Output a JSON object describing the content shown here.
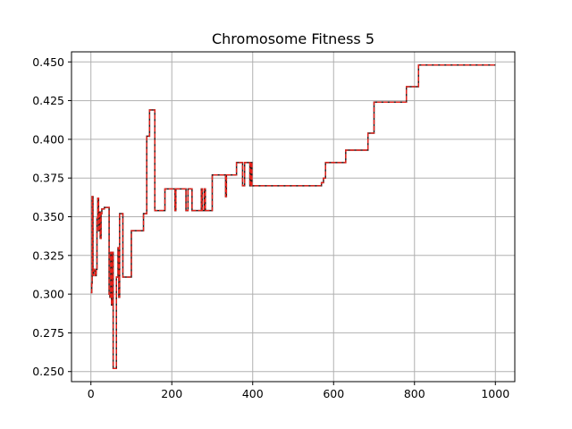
{
  "chart_data": {
    "type": "line",
    "title": "Chromosome Fitness 5",
    "xlabel": "",
    "ylabel": "",
    "xlim": [
      -48,
      1048
    ],
    "ylim": [
      0.2435,
      0.4565
    ],
    "grid": true,
    "x_ticks": [
      0,
      200,
      400,
      600,
      800,
      1000
    ],
    "y_ticks": [
      0.25,
      0.275,
      0.3,
      0.325,
      0.35,
      0.375,
      0.4,
      0.425,
      0.45
    ],
    "x_tick_labels": [
      "0",
      "200",
      "400",
      "600",
      "800",
      "1000"
    ],
    "y_tick_labels": [
      "0.250",
      "0.275",
      "0.300",
      "0.325",
      "0.350",
      "0.375",
      "0.400",
      "0.425",
      "0.450"
    ],
    "series": [
      {
        "style": "solid",
        "color": "#1f1f1f",
        "x": [
          0,
          2,
          3,
          5,
          7,
          9,
          11,
          13,
          15,
          17,
          19,
          21,
          23,
          25,
          27,
          30,
          33,
          36,
          39,
          42,
          45,
          47,
          49,
          51,
          53,
          55,
          57,
          59,
          61,
          63,
          65,
          67,
          69,
          71,
          73,
          75,
          77,
          79,
          82,
          85,
          90,
          95,
          100,
          110,
          120,
          130,
          135,
          138,
          140,
          145,
          150,
          155,
          158,
          160,
          170,
          180,
          183,
          185,
          200,
          205,
          208,
          210,
          215,
          220,
          230,
          235,
          240,
          245,
          250,
          255,
          260,
          265,
          270,
          273,
          275,
          278,
          280,
          283,
          285,
          290,
          300,
          305,
          310,
          320,
          330,
          333,
          335,
          340,
          350,
          360,
          365,
          370,
          375,
          380,
          385,
          390,
          393,
          395,
          398,
          400,
          450,
          500,
          550,
          565,
          570,
          575,
          580,
          600,
          620,
          630,
          650,
          670,
          680,
          685,
          690,
          695,
          700,
          720,
          740,
          760,
          775,
          780,
          800,
          805,
          810,
          850,
          900,
          950,
          1000
        ],
        "y": [
          0.301,
          0.307,
          0.363,
          0.312,
          0.316,
          0.315,
          0.312,
          0.316,
          0.349,
          0.362,
          0.341,
          0.353,
          0.336,
          0.352,
          0.355,
          0.355,
          0.356,
          0.356,
          0.356,
          0.356,
          0.3,
          0.298,
          0.327,
          0.293,
          0.327,
          0.252,
          0.252,
          0.252,
          0.252,
          0.311,
          0.311,
          0.33,
          0.298,
          0.352,
          0.352,
          0.352,
          0.352,
          0.311,
          0.311,
          0.311,
          0.311,
          0.311,
          0.341,
          0.341,
          0.341,
          0.352,
          0.352,
          0.402,
          0.402,
          0.419,
          0.419,
          0.419,
          0.354,
          0.354,
          0.354,
          0.354,
          0.368,
          0.368,
          0.368,
          0.368,
          0.354,
          0.368,
          0.368,
          0.368,
          0.368,
          0.354,
          0.368,
          0.368,
          0.354,
          0.354,
          0.354,
          0.354,
          0.354,
          0.368,
          0.354,
          0.354,
          0.368,
          0.354,
          0.354,
          0.354,
          0.377,
          0.377,
          0.377,
          0.377,
          0.377,
          0.363,
          0.377,
          0.377,
          0.377,
          0.385,
          0.385,
          0.385,
          0.37,
          0.385,
          0.385,
          0.385,
          0.37,
          0.385,
          0.37,
          0.37,
          0.37,
          0.37,
          0.37,
          0.37,
          0.372,
          0.375,
          0.385,
          0.385,
          0.385,
          0.393,
          0.393,
          0.393,
          0.393,
          0.404,
          0.404,
          0.404,
          0.424,
          0.424,
          0.424,
          0.424,
          0.424,
          0.434,
          0.434,
          0.434,
          0.448,
          0.448,
          0.448,
          0.448,
          0.448
        ]
      },
      {
        "style": "dashed",
        "color": "#e8211a",
        "x": [
          0,
          2,
          3,
          5,
          7,
          9,
          11,
          13,
          15,
          17,
          19,
          21,
          23,
          25,
          27,
          30,
          33,
          36,
          39,
          42,
          45,
          47,
          49,
          51,
          53,
          55,
          57,
          59,
          61,
          63,
          65,
          67,
          69,
          71,
          73,
          75,
          77,
          79,
          82,
          85,
          90,
          95,
          100,
          110,
          120,
          130,
          135,
          138,
          140,
          145,
          150,
          155,
          158,
          160,
          170,
          180,
          183,
          185,
          200,
          205,
          208,
          210,
          215,
          220,
          230,
          235,
          240,
          245,
          250,
          255,
          260,
          265,
          270,
          273,
          275,
          278,
          280,
          283,
          285,
          290,
          300,
          305,
          310,
          320,
          330,
          333,
          335,
          340,
          350,
          360,
          365,
          370,
          375,
          380,
          385,
          390,
          393,
          395,
          398,
          400,
          450,
          500,
          550,
          565,
          570,
          575,
          580,
          600,
          620,
          630,
          650,
          670,
          680,
          685,
          690,
          695,
          700,
          720,
          740,
          760,
          775,
          780,
          800,
          805,
          810,
          850,
          900,
          950,
          1000
        ],
        "y": [
          0.301,
          0.307,
          0.363,
          0.312,
          0.316,
          0.315,
          0.312,
          0.316,
          0.349,
          0.362,
          0.341,
          0.353,
          0.336,
          0.352,
          0.355,
          0.355,
          0.356,
          0.356,
          0.356,
          0.356,
          0.3,
          0.298,
          0.327,
          0.293,
          0.327,
          0.252,
          0.252,
          0.252,
          0.252,
          0.311,
          0.311,
          0.33,
          0.298,
          0.352,
          0.352,
          0.352,
          0.352,
          0.311,
          0.311,
          0.311,
          0.311,
          0.311,
          0.341,
          0.341,
          0.341,
          0.352,
          0.352,
          0.402,
          0.402,
          0.419,
          0.419,
          0.419,
          0.354,
          0.354,
          0.354,
          0.354,
          0.368,
          0.368,
          0.368,
          0.368,
          0.354,
          0.368,
          0.368,
          0.368,
          0.368,
          0.354,
          0.368,
          0.368,
          0.354,
          0.354,
          0.354,
          0.354,
          0.354,
          0.368,
          0.354,
          0.354,
          0.368,
          0.354,
          0.354,
          0.354,
          0.377,
          0.377,
          0.377,
          0.377,
          0.377,
          0.363,
          0.377,
          0.377,
          0.377,
          0.385,
          0.385,
          0.385,
          0.37,
          0.385,
          0.385,
          0.385,
          0.37,
          0.385,
          0.37,
          0.37,
          0.37,
          0.37,
          0.37,
          0.37,
          0.372,
          0.375,
          0.385,
          0.385,
          0.385,
          0.393,
          0.393,
          0.393,
          0.393,
          0.404,
          0.404,
          0.404,
          0.424,
          0.424,
          0.424,
          0.424,
          0.424,
          0.434,
          0.434,
          0.434,
          0.448,
          0.448,
          0.448,
          0.448,
          0.448
        ]
      }
    ]
  },
  "colors": {
    "grid": "#b0b0b0",
    "axes": "#000000",
    "background": "#ffffff"
  }
}
